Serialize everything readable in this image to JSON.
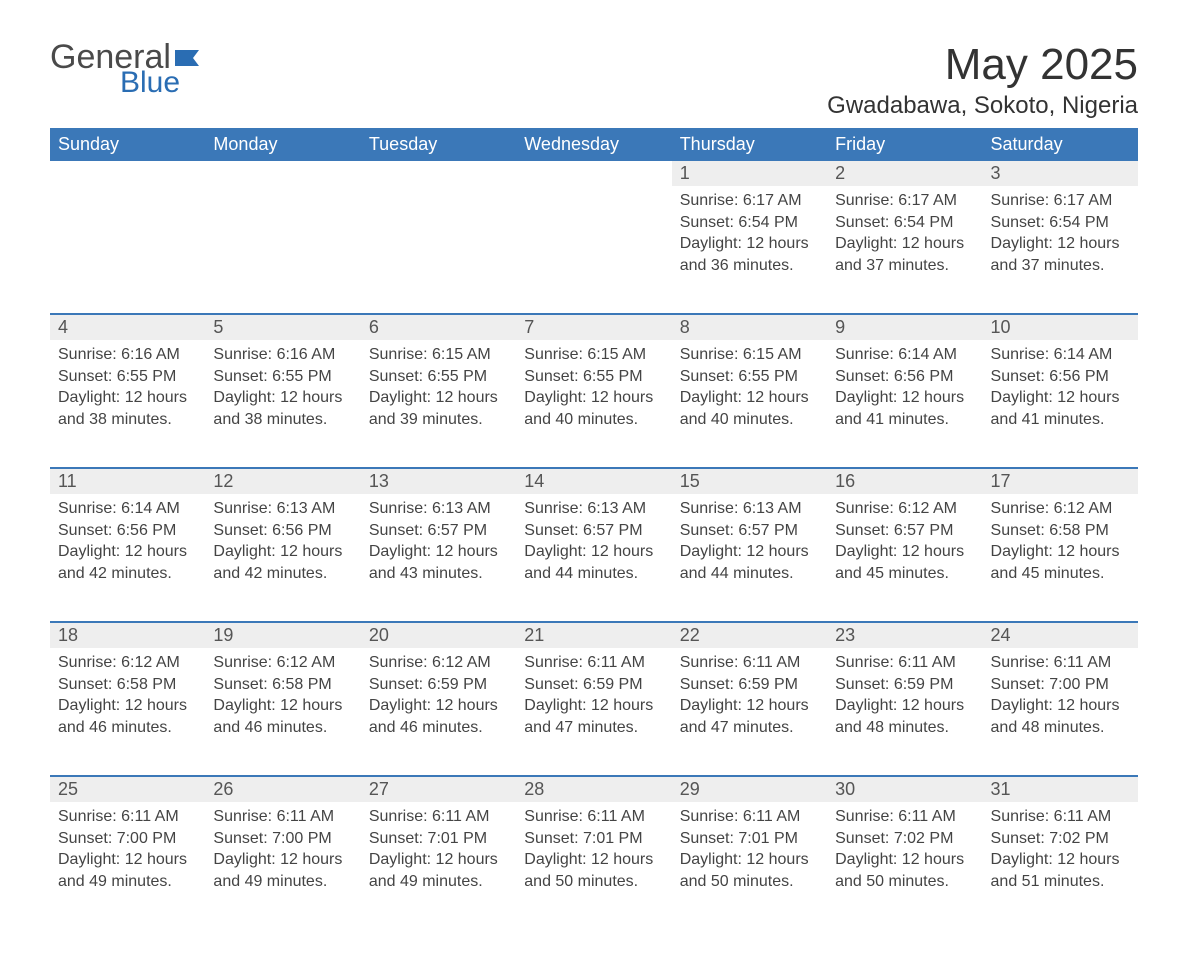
{
  "logo": {
    "text1": "General",
    "text2": "Blue"
  },
  "title": "May 2025",
  "location": "Gwadabawa, Sokoto, Nigeria",
  "colors": {
    "header_bg": "#3b78b8",
    "header_text": "#ffffff",
    "daynum_bg": "#eeeeee",
    "rule": "#3b78b8",
    "body_text": "#444444",
    "logo_gray": "#4a4a4a",
    "logo_blue": "#2a6db3"
  },
  "weekdays": [
    "Sunday",
    "Monday",
    "Tuesday",
    "Wednesday",
    "Thursday",
    "Friday",
    "Saturday"
  ],
  "weeks": [
    [
      null,
      null,
      null,
      null,
      {
        "d": "1",
        "sr": "6:17 AM",
        "ss": "6:54 PM",
        "dl": "12 hours and 36 minutes."
      },
      {
        "d": "2",
        "sr": "6:17 AM",
        "ss": "6:54 PM",
        "dl": "12 hours and 37 minutes."
      },
      {
        "d": "3",
        "sr": "6:17 AM",
        "ss": "6:54 PM",
        "dl": "12 hours and 37 minutes."
      }
    ],
    [
      {
        "d": "4",
        "sr": "6:16 AM",
        "ss": "6:55 PM",
        "dl": "12 hours and 38 minutes."
      },
      {
        "d": "5",
        "sr": "6:16 AM",
        "ss": "6:55 PM",
        "dl": "12 hours and 38 minutes."
      },
      {
        "d": "6",
        "sr": "6:15 AM",
        "ss": "6:55 PM",
        "dl": "12 hours and 39 minutes."
      },
      {
        "d": "7",
        "sr": "6:15 AM",
        "ss": "6:55 PM",
        "dl": "12 hours and 40 minutes."
      },
      {
        "d": "8",
        "sr": "6:15 AM",
        "ss": "6:55 PM",
        "dl": "12 hours and 40 minutes."
      },
      {
        "d": "9",
        "sr": "6:14 AM",
        "ss": "6:56 PM",
        "dl": "12 hours and 41 minutes."
      },
      {
        "d": "10",
        "sr": "6:14 AM",
        "ss": "6:56 PM",
        "dl": "12 hours and 41 minutes."
      }
    ],
    [
      {
        "d": "11",
        "sr": "6:14 AM",
        "ss": "6:56 PM",
        "dl": "12 hours and 42 minutes."
      },
      {
        "d": "12",
        "sr": "6:13 AM",
        "ss": "6:56 PM",
        "dl": "12 hours and 42 minutes."
      },
      {
        "d": "13",
        "sr": "6:13 AM",
        "ss": "6:57 PM",
        "dl": "12 hours and 43 minutes."
      },
      {
        "d": "14",
        "sr": "6:13 AM",
        "ss": "6:57 PM",
        "dl": "12 hours and 44 minutes."
      },
      {
        "d": "15",
        "sr": "6:13 AM",
        "ss": "6:57 PM",
        "dl": "12 hours and 44 minutes."
      },
      {
        "d": "16",
        "sr": "6:12 AM",
        "ss": "6:57 PM",
        "dl": "12 hours and 45 minutes."
      },
      {
        "d": "17",
        "sr": "6:12 AM",
        "ss": "6:58 PM",
        "dl": "12 hours and 45 minutes."
      }
    ],
    [
      {
        "d": "18",
        "sr": "6:12 AM",
        "ss": "6:58 PM",
        "dl": "12 hours and 46 minutes."
      },
      {
        "d": "19",
        "sr": "6:12 AM",
        "ss": "6:58 PM",
        "dl": "12 hours and 46 minutes."
      },
      {
        "d": "20",
        "sr": "6:12 AM",
        "ss": "6:59 PM",
        "dl": "12 hours and 46 minutes."
      },
      {
        "d": "21",
        "sr": "6:11 AM",
        "ss": "6:59 PM",
        "dl": "12 hours and 47 minutes."
      },
      {
        "d": "22",
        "sr": "6:11 AM",
        "ss": "6:59 PM",
        "dl": "12 hours and 47 minutes."
      },
      {
        "d": "23",
        "sr": "6:11 AM",
        "ss": "6:59 PM",
        "dl": "12 hours and 48 minutes."
      },
      {
        "d": "24",
        "sr": "6:11 AM",
        "ss": "7:00 PM",
        "dl": "12 hours and 48 minutes."
      }
    ],
    [
      {
        "d": "25",
        "sr": "6:11 AM",
        "ss": "7:00 PM",
        "dl": "12 hours and 49 minutes."
      },
      {
        "d": "26",
        "sr": "6:11 AM",
        "ss": "7:00 PM",
        "dl": "12 hours and 49 minutes."
      },
      {
        "d": "27",
        "sr": "6:11 AM",
        "ss": "7:01 PM",
        "dl": "12 hours and 49 minutes."
      },
      {
        "d": "28",
        "sr": "6:11 AM",
        "ss": "7:01 PM",
        "dl": "12 hours and 50 minutes."
      },
      {
        "d": "29",
        "sr": "6:11 AM",
        "ss": "7:01 PM",
        "dl": "12 hours and 50 minutes."
      },
      {
        "d": "30",
        "sr": "6:11 AM",
        "ss": "7:02 PM",
        "dl": "12 hours and 50 minutes."
      },
      {
        "d": "31",
        "sr": "6:11 AM",
        "ss": "7:02 PM",
        "dl": "12 hours and 51 minutes."
      }
    ]
  ],
  "labels": {
    "sunrise": "Sunrise: ",
    "sunset": "Sunset: ",
    "daylight": "Daylight: "
  }
}
